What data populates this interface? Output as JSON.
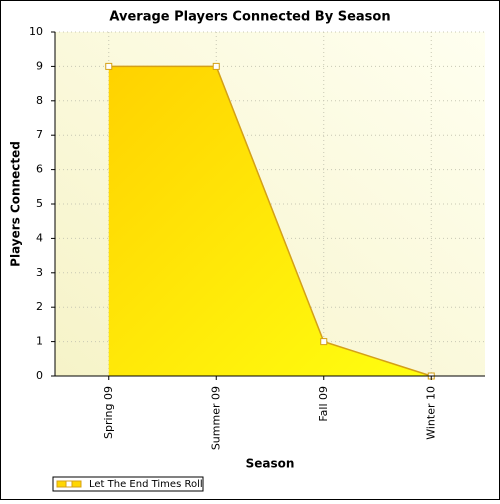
{
  "chart_data": {
    "type": "area",
    "title": "Average Players Connected By Season",
    "x_label": "Season",
    "y_label": "Players Connected",
    "categories": [
      "Spring 09",
      "Summer 09",
      "Fall 09",
      "Winter 10"
    ],
    "series": [
      {
        "name": "Let The End Times Roll",
        "color": "#ffd700",
        "values": [
          9,
          9,
          1,
          0
        ]
      }
    ],
    "ylim": [
      0,
      10
    ],
    "yticks": [
      0,
      1,
      2,
      3,
      4,
      5,
      6,
      7,
      8,
      9,
      10
    ],
    "grid": true,
    "legend": "bottom-left"
  }
}
